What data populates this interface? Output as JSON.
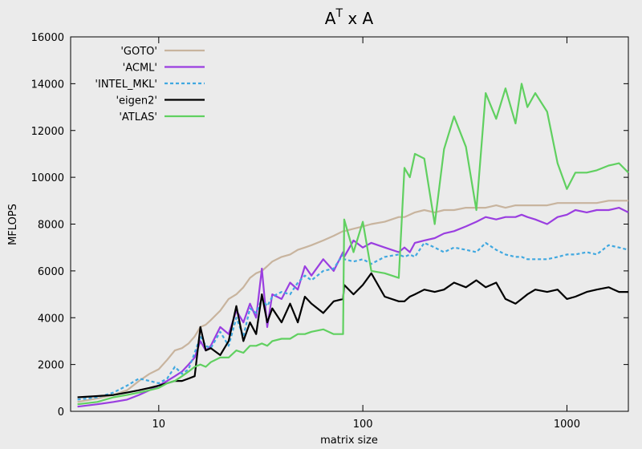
{
  "chart_data": {
    "type": "line",
    "title_parts": [
      "A",
      "T",
      " x A"
    ],
    "x_label": "matrix size",
    "y_label": "MFLOPS",
    "xscale": "log",
    "xlim": [
      3.7,
      2000
    ],
    "xticks": [
      10,
      100,
      1000
    ],
    "ylim": [
      0,
      16000
    ],
    "yticks": [
      0,
      2000,
      4000,
      6000,
      8000,
      10000,
      12000,
      14000,
      16000
    ],
    "legend": "top-left",
    "x": [
      4,
      5,
      6,
      7,
      8,
      9,
      10,
      11,
      12,
      13,
      14,
      15,
      16,
      17,
      18,
      20,
      22,
      24,
      26,
      28,
      30,
      32,
      34,
      36,
      40,
      44,
      48,
      52,
      56,
      64,
      72,
      80,
      81,
      90,
      100,
      110,
      128,
      150,
      160,
      170,
      180,
      200,
      225,
      250,
      280,
      320,
      360,
      400,
      450,
      500,
      560,
      600,
      640,
      700,
      800,
      900,
      1000,
      1100,
      1250,
      1400,
      1600,
      1800,
      2000
    ],
    "series": [
      {
        "name": "'GOTO'",
        "color": "#c8b49e",
        "dash": false,
        "values": [
          400,
          550,
          700,
          900,
          1300,
          1600,
          1800,
          2200,
          2600,
          2700,
          2900,
          3200,
          3600,
          3700,
          3900,
          4300,
          4800,
          5000,
          5300,
          5700,
          5900,
          6000,
          6200,
          6400,
          6600,
          6700,
          6900,
          7000,
          7100,
          7300,
          7500,
          7700,
          7700,
          7800,
          7900,
          8000,
          8100,
          8300,
          8300,
          8400,
          8500,
          8600,
          8500,
          8600,
          8600,
          8700,
          8700,
          8700,
          8800,
          8700,
          8800,
          8800,
          8800,
          8800,
          8800,
          8900,
          8900,
          8900,
          8900,
          8900,
          9000,
          9000,
          9000
        ]
      },
      {
        "name": "'ACML'",
        "color": "#9a3ee0",
        "dash": false,
        "values": [
          200,
          300,
          400,
          500,
          700,
          900,
          1100,
          1300,
          1500,
          1700,
          2000,
          2300,
          3000,
          2600,
          2800,
          3600,
          3300,
          4300,
          3800,
          4600,
          4000,
          6100,
          3600,
          5000,
          4800,
          5500,
          5200,
          6200,
          5800,
          6500,
          6000,
          6800,
          6600,
          7300,
          7000,
          7200,
          7000,
          6800,
          7000,
          6800,
          7200,
          7300,
          7400,
          7600,
          7700,
          7900,
          8100,
          8300,
          8200,
          8300,
          8300,
          8400,
          8300,
          8200,
          8000,
          8300,
          8400,
          8600,
          8500,
          8600,
          8600,
          8700,
          8500
        ]
      },
      {
        "name": "'INTEL_MKL'",
        "color": "#40a8e0",
        "dash": true,
        "values": [
          500,
          600,
          800,
          1100,
          1400,
          1300,
          1200,
          1400,
          1900,
          1600,
          1800,
          2500,
          3200,
          2800,
          2700,
          3400,
          2800,
          4000,
          3200,
          4400,
          4200,
          4800,
          4500,
          4900,
          5100,
          5000,
          5500,
          5800,
          5600,
          6000,
          6100,
          6700,
          6500,
          6400,
          6500,
          6300,
          6600,
          6700,
          6600,
          6700,
          6600,
          7200,
          7000,
          6800,
          7000,
          6900,
          6800,
          7200,
          6900,
          6700,
          6600,
          6600,
          6500,
          6500,
          6500,
          6600,
          6700,
          6700,
          6800,
          6700,
          7100,
          7000,
          6900
        ]
      },
      {
        "name": "'eigen2'",
        "color": "#000000",
        "dash": false,
        "values": [
          600,
          650,
          700,
          800,
          900,
          1000,
          1100,
          1200,
          1300,
          1300,
          1400,
          1500,
          3600,
          2600,
          2700,
          2400,
          3000,
          4500,
          3000,
          3800,
          3300,
          5000,
          3800,
          4400,
          3800,
          4600,
          3800,
          4900,
          4600,
          4200,
          4700,
          4800,
          5400,
          5000,
          5400,
          5900,
          4900,
          4700,
          4700,
          4900,
          5000,
          5200,
          5100,
          5200,
          5500,
          5300,
          5600,
          5300,
          5500,
          4800,
          4600,
          4800,
          5000,
          5200,
          5100,
          5200,
          4800,
          4900,
          5100,
          5200,
          5300,
          5100,
          5100
        ]
      },
      {
        "name": "'ATLAS'",
        "color": "#60d060",
        "dash": false,
        "values": [
          300,
          400,
          600,
          700,
          800,
          900,
          1000,
          1200,
          1300,
          1500,
          1700,
          1900,
          2000,
          1900,
          2100,
          2300,
          2300,
          2600,
          2500,
          2800,
          2800,
          2900,
          2800,
          3000,
          3100,
          3100,
          3300,
          3300,
          3400,
          3500,
          3300,
          3300,
          8200,
          6800,
          8100,
          6000,
          5900,
          5700,
          10400,
          10000,
          11000,
          10800,
          8000,
          11200,
          12600,
          11300,
          8600,
          13600,
          12500,
          13800,
          12300,
          14000,
          13000,
          13600,
          12800,
          10600,
          9500,
          10200,
          10200,
          10300,
          10500,
          10600,
          10200
        ]
      }
    ]
  }
}
